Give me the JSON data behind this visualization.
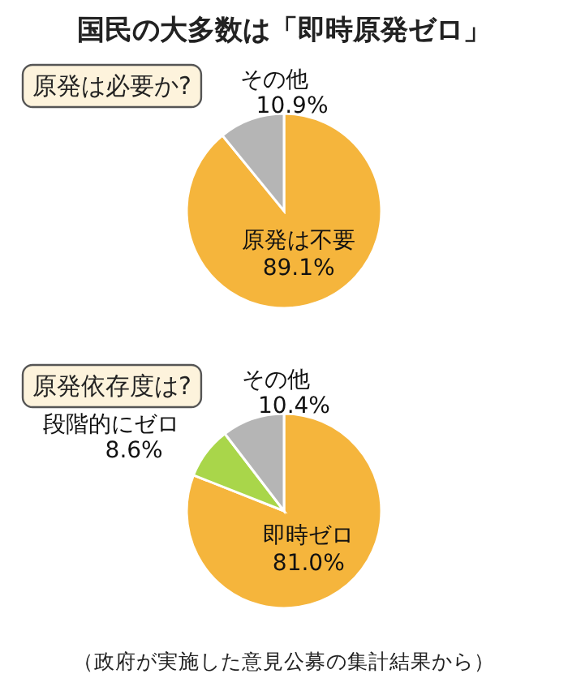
{
  "chart_data": [
    {
      "type": "pie",
      "title": "国民の大多数は「即時原発ゼロ」",
      "subtitle": "原発は必要か?",
      "categories": [
        "原発は不要",
        "その他"
      ],
      "values": [
        89.1,
        10.9
      ],
      "colors": [
        "#f5b53c",
        "#b5b5b5"
      ],
      "value_labels": [
        "89.1%",
        "10.9%"
      ]
    },
    {
      "type": "pie",
      "subtitle": "原発依存度は?",
      "categories": [
        "即時ゼロ",
        "段階的にゼロ",
        "その他"
      ],
      "values": [
        81.0,
        8.6,
        10.4
      ],
      "colors": [
        "#f5b53c",
        "#a9d64a",
        "#b5b5b5"
      ],
      "value_labels": [
        "81.0%",
        "8.6%",
        "10.4%"
      ],
      "annotations": [
        "（政府が実施した意見公募の集計結果から）"
      ]
    }
  ]
}
